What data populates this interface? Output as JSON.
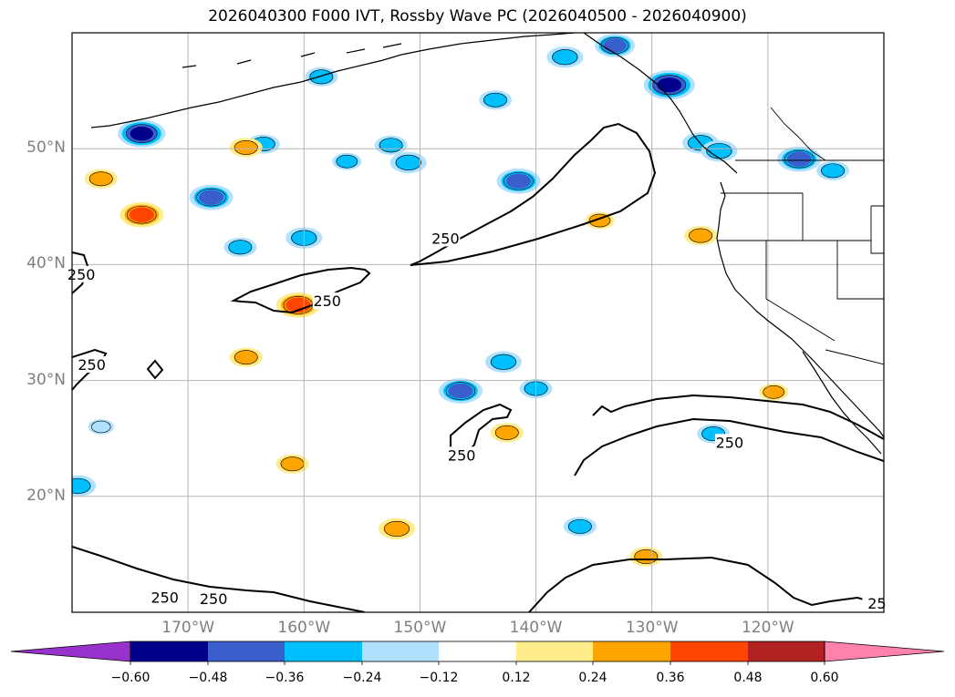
{
  "title": "2026040300 F000 IVT, Rossby Wave PC (2026040500 - 2026040900)",
  "map": {
    "extent": {
      "lon_min": -180,
      "lon_max": -110,
      "lat_min": 10,
      "lat_max": 60
    },
    "lat_ticks": [
      {
        "value": 20,
        "label": "20°N"
      },
      {
        "value": 30,
        "label": "30°N"
      },
      {
        "value": 40,
        "label": "40°N"
      },
      {
        "value": 50,
        "label": "50°N"
      }
    ],
    "lon_ticks": [
      {
        "value": -170,
        "label": "170°W"
      },
      {
        "value": -160,
        "label": "160°W"
      },
      {
        "value": -150,
        "label": "150°W"
      },
      {
        "value": -140,
        "label": "140°W"
      },
      {
        "value": -130,
        "label": "130°W"
      },
      {
        "value": -120,
        "label": "120°W"
      }
    ],
    "contour_level": "250",
    "ivt_contour_labels": [
      {
        "text": "250",
        "lon": -179.2,
        "lat": 39.1
      },
      {
        "text": "250",
        "lon": -158.0,
        "lat": 36.8
      },
      {
        "text": "250",
        "lon": -147.8,
        "lat": 42.2
      },
      {
        "text": "250",
        "lon": -178.3,
        "lat": 31.3
      },
      {
        "text": "250",
        "lon": -146.4,
        "lat": 23.5
      },
      {
        "text": "250",
        "lon": -123.3,
        "lat": 24.6
      },
      {
        "text": "250",
        "lon": -172.0,
        "lat": 11.2
      },
      {
        "text": "250",
        "lon": -167.8,
        "lat": 11.1
      },
      {
        "text": "25",
        "lon": -110.6,
        "lat": 10.7
      }
    ],
    "pc_anomalies": [
      {
        "lon": -174,
        "lat": 51.3,
        "value": -0.5
      },
      {
        "lon": -168,
        "lat": 45.8,
        "value": -0.45
      },
      {
        "lon": -165.5,
        "lat": 41.5,
        "value": -0.3
      },
      {
        "lon": -160,
        "lat": 42.3,
        "value": -0.35
      },
      {
        "lon": -163.5,
        "lat": 50.4,
        "value": -0.3
      },
      {
        "lon": -158.5,
        "lat": 56.2,
        "value": -0.3
      },
      {
        "lon": -151,
        "lat": 48.8,
        "value": -0.35
      },
      {
        "lon": -156.3,
        "lat": 48.9,
        "value": -0.25
      },
      {
        "lon": -152.5,
        "lat": 50.3,
        "value": -0.3
      },
      {
        "lon": -141.5,
        "lat": 47.2,
        "value": -0.45
      },
      {
        "lon": -143.5,
        "lat": 54.2,
        "value": -0.3
      },
      {
        "lon": -137.5,
        "lat": 57.9,
        "value": -0.35
      },
      {
        "lon": -133.2,
        "lat": 58.9,
        "value": -0.4
      },
      {
        "lon": -128.5,
        "lat": 55.5,
        "value": -0.55
      },
      {
        "lon": -125.8,
        "lat": 50.5,
        "value": -0.35
      },
      {
        "lon": -124.2,
        "lat": 49.8,
        "value": -0.35
      },
      {
        "lon": -117.3,
        "lat": 49.1,
        "value": -0.45
      },
      {
        "lon": -114.4,
        "lat": 48.1,
        "value": -0.3
      },
      {
        "lon": -146.5,
        "lat": 29.1,
        "value": -0.45
      },
      {
        "lon": -142.8,
        "lat": 31.6,
        "value": -0.35
      },
      {
        "lon": -140.0,
        "lat": 29.3,
        "value": -0.3
      },
      {
        "lon": -124.7,
        "lat": 25.4,
        "value": -0.3
      },
      {
        "lon": -136.2,
        "lat": 17.4,
        "value": -0.3
      },
      {
        "lon": -179.5,
        "lat": 20.9,
        "value": -0.35
      },
      {
        "lon": -177.5,
        "lat": 26.0,
        "value": -0.2
      }
    ],
    "pc_positive": [
      {
        "lon": -174.0,
        "lat": 44.3,
        "value": 0.45
      },
      {
        "lon": -160.5,
        "lat": 36.5,
        "value": 0.45
      },
      {
        "lon": -165.0,
        "lat": 32.0,
        "value": 0.3
      },
      {
        "lon": -142.5,
        "lat": 25.5,
        "value": 0.3
      },
      {
        "lon": -130.5,
        "lat": 14.8,
        "value": 0.3
      },
      {
        "lon": -152.0,
        "lat": 17.2,
        "value": 0.35
      },
      {
        "lon": -161.0,
        "lat": 22.8,
        "value": 0.3
      },
      {
        "lon": -177.5,
        "lat": 47.4,
        "value": 0.3
      },
      {
        "lon": -125.8,
        "lat": 42.5,
        "value": 0.3
      },
      {
        "lon": -119.5,
        "lat": 29.0,
        "value": 0.25
      },
      {
        "lon": -165.0,
        "lat": 50.1,
        "value": 0.3
      },
      {
        "lon": -134.5,
        "lat": 43.8,
        "value": 0.25
      }
    ]
  },
  "colorbar": {
    "colors": [
      "#9932cc",
      "#00008b",
      "#3a5fcd",
      "#00bfff",
      "#b0e2ff",
      "#ffffff",
      "#ffec8b",
      "#ffa500",
      "#ff4500",
      "#b22222",
      "#ff82ab"
    ],
    "ticks": [
      "−0.60",
      "−0.48",
      "−0.36",
      "−0.24",
      "−0.12",
      "0.12",
      "0.24",
      "0.36",
      "0.48",
      "0.60"
    ]
  }
}
